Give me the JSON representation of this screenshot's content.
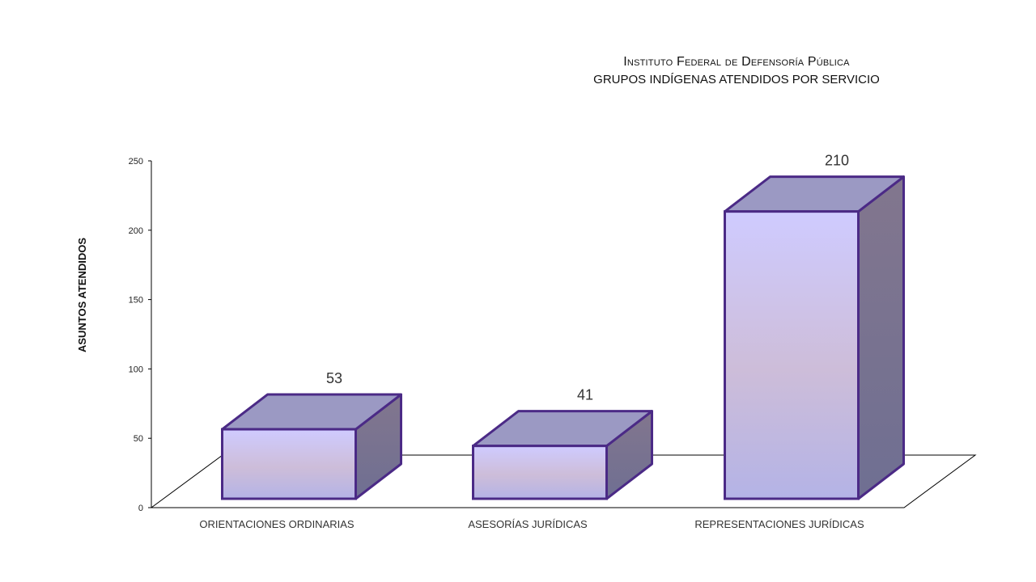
{
  "chart_data": {
    "type": "bar",
    "title": "Instituto Federal de Defensoría Pública",
    "subtitle": "GRUPOS INDÍGENAS ATENDIDOS POR SERVICIO",
    "xlabel": "",
    "ylabel": "ASUNTOS ATENDIDOS",
    "categories": [
      "ORIENTACIONES ORDINARIAS",
      "ASESORÍAS JURÍDICAS",
      "REPRESENTACIONES JURÍDICAS"
    ],
    "values": [
      53,
      41,
      210
    ],
    "data_labels": [
      "53",
      "41",
      "210"
    ],
    "ylim": [
      0,
      250
    ],
    "yticks": [
      "0",
      "50",
      "100",
      "150",
      "200",
      "250"
    ],
    "style": "3d-column",
    "colors": {
      "front_top": "#cfcbff",
      "front_mid": "#cdbdd9",
      "front_bottom": "#b4b3e6",
      "top_face": "#9b99c3",
      "side_face": "#82768e",
      "outline": "#4b2a86"
    }
  }
}
